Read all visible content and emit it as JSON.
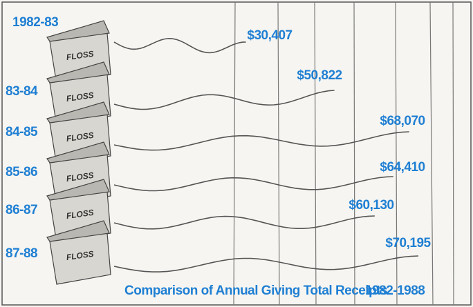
{
  "chart_data": {
    "type": "floss",
    "title": "Comparison of Annual Giving Total Receipts",
    "subtitle": "1982-1988",
    "categories": [
      "1982-83",
      "83-84",
      "84-85",
      "85-86",
      "86-87",
      "87-88"
    ],
    "values": [
      30407,
      50822,
      68070,
      64410,
      60130,
      70195
    ],
    "value_labels": [
      "$30,407",
      "$50,822",
      "$68,070",
      "$64,410",
      "$60,130",
      "$70,195"
    ],
    "box_text": "FLOSS",
    "color": "#1f7fd3"
  }
}
